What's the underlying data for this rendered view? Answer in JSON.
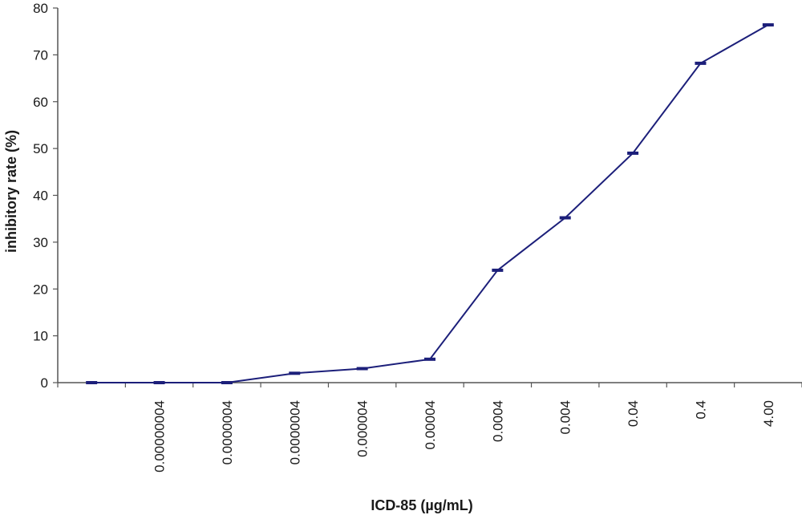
{
  "chart_data": {
    "type": "line",
    "title": "",
    "xlabel": "ICD-85 (µg/mL)",
    "ylabel": "inhibitory rate (%)",
    "ylim": [
      0,
      80
    ],
    "yticks": [
      0,
      10,
      20,
      30,
      40,
      50,
      60,
      70,
      80
    ],
    "categories": [
      "",
      "0.00000004",
      "0.0000004",
      "0.0000004",
      "0.000004",
      "0.00004",
      "0.0004",
      "0.004",
      "0.04",
      "0.4",
      "4.00"
    ],
    "series": [
      {
        "values": [
          0,
          0,
          0,
          2,
          3,
          5,
          24,
          35.2,
          49,
          68.2,
          76.4
        ],
        "color": "#1c1f7a"
      }
    ],
    "error_bars": "short horizontal caps at each point",
    "grid": false,
    "legend": "none"
  }
}
